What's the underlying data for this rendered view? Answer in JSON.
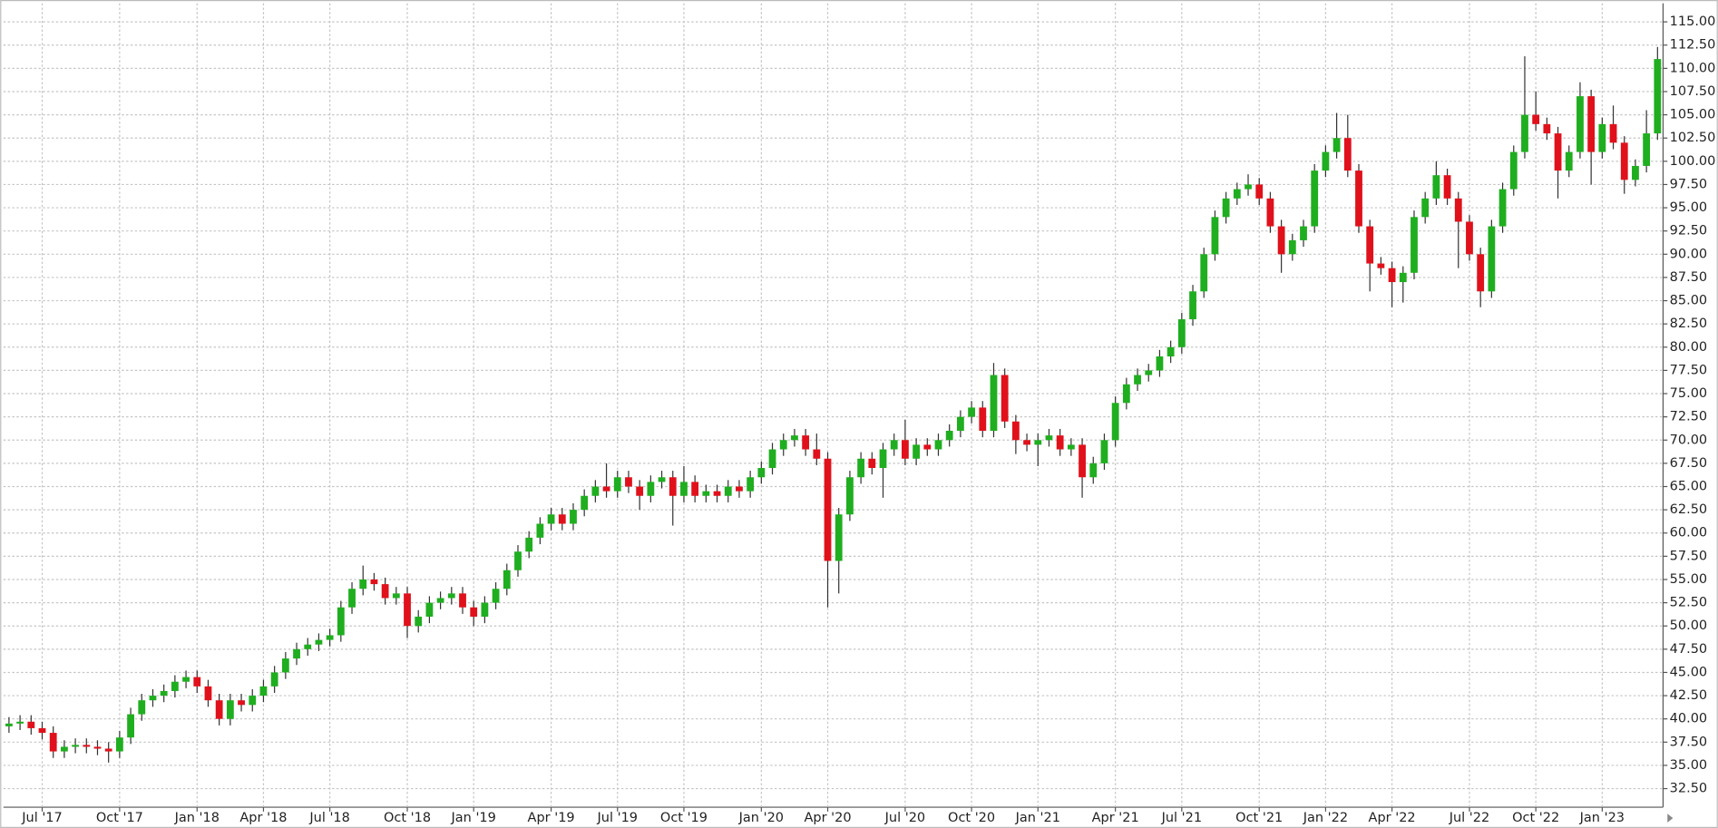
{
  "chart_data": {
    "type": "candlestick",
    "up_color": "#1fae1f",
    "down_color": "#e0111b",
    "grid": true,
    "ylim": [
      30.5,
      117
    ],
    "yticks": [
      {
        "value": 32.5,
        "label": "32.50"
      },
      {
        "value": 35,
        "label": "35.00"
      },
      {
        "value": 37.5,
        "label": "37.50"
      },
      {
        "value": 40,
        "label": "40.00"
      },
      {
        "value": 42.5,
        "label": "42.50"
      },
      {
        "value": 45,
        "label": "45.00"
      },
      {
        "value": 47.5,
        "label": "47.50"
      },
      {
        "value": 50,
        "label": "50.00"
      },
      {
        "value": 52.5,
        "label": "52.50"
      },
      {
        "value": 55,
        "label": "55.00"
      },
      {
        "value": 57.5,
        "label": "57.50"
      },
      {
        "value": 60,
        "label": "60.00"
      },
      {
        "value": 62.5,
        "label": "62.50"
      },
      {
        "value": 65,
        "label": "65.00"
      },
      {
        "value": 67.5,
        "label": "67.50"
      },
      {
        "value": 70,
        "label": "70.00"
      },
      {
        "value": 72.5,
        "label": "72.50"
      },
      {
        "value": 75,
        "label": "75.00"
      },
      {
        "value": 77.5,
        "label": "77.50"
      },
      {
        "value": 80,
        "label": "80.00"
      },
      {
        "value": 82.5,
        "label": "82.50"
      },
      {
        "value": 85,
        "label": "85.00"
      },
      {
        "value": 87.5,
        "label": "87.50"
      },
      {
        "value": 90,
        "label": "90.00"
      },
      {
        "value": 92.5,
        "label": "92.50"
      },
      {
        "value": 95,
        "label": "95.00"
      },
      {
        "value": 97.5,
        "label": "97.50"
      },
      {
        "value": 100,
        "label": "100.00"
      },
      {
        "value": 102.5,
        "label": "102.50"
      },
      {
        "value": 105,
        "label": "105.00"
      },
      {
        "value": 107.5,
        "label": "107.50"
      },
      {
        "value": 110,
        "label": "110.00"
      },
      {
        "value": 112.5,
        "label": "112.50"
      },
      {
        "value": 115,
        "label": "115.00"
      }
    ],
    "categories": [
      null,
      null,
      null,
      "Jul '17",
      null,
      null,
      null,
      null,
      null,
      null,
      "Oct '17",
      null,
      null,
      null,
      null,
      null,
      null,
      "Jan '18",
      null,
      null,
      null,
      null,
      null,
      "Apr '18",
      null,
      null,
      null,
      null,
      null,
      "Jul '18",
      null,
      null,
      null,
      null,
      null,
      null,
      "Oct '18",
      null,
      null,
      null,
      null,
      null,
      "Jan '19",
      null,
      null,
      null,
      null,
      null,
      null,
      "Apr '19",
      null,
      null,
      null,
      null,
      null,
      "Jul '19",
      null,
      null,
      null,
      null,
      null,
      "Oct '19",
      null,
      null,
      null,
      null,
      null,
      null,
      "Jan '20",
      null,
      null,
      null,
      null,
      null,
      "Apr '20",
      null,
      null,
      null,
      null,
      null,
      null,
      "Jul '20",
      null,
      null,
      null,
      null,
      null,
      "Oct '20",
      null,
      null,
      null,
      null,
      null,
      "Jan '21",
      null,
      null,
      null,
      null,
      null,
      null,
      "Apr '21",
      null,
      null,
      null,
      null,
      null,
      "Jul '21",
      null,
      null,
      null,
      null,
      null,
      null,
      "Oct '21",
      null,
      null,
      null,
      null,
      null,
      "Jan '22",
      null,
      null,
      null,
      null,
      null,
      "Apr '22",
      null,
      null,
      null,
      null,
      null,
      null,
      "Jul '22",
      null,
      null,
      null,
      null,
      null,
      "Oct '22",
      null,
      null,
      null,
      null,
      null,
      "Jan '23",
      null,
      null,
      null,
      null,
      null
    ],
    "open": [
      39.2,
      39.5,
      39.7,
      39,
      38.5,
      36.5,
      37,
      37.2,
      37,
      36.8,
      36.5,
      38,
      40.5,
      42,
      42.5,
      43,
      44,
      44.5,
      43.5,
      42,
      40,
      42,
      41.5,
      42.5,
      43.5,
      45,
      46.5,
      47.5,
      48,
      48.5,
      49,
      52,
      54,
      55,
      54.5,
      53,
      53.5,
      50,
      51,
      52.5,
      53,
      53.5,
      52,
      51,
      52.5,
      54,
      56,
      58,
      59.5,
      61,
      62,
      61,
      62.5,
      64,
      65,
      64.5,
      66,
      65,
      64,
      65.5,
      66,
      64,
      65.5,
      64,
      64.5,
      64,
      65,
      64.5,
      66,
      67,
      69,
      70,
      70.5,
      69,
      68,
      57,
      62,
      66,
      68,
      67,
      69,
      70,
      68,
      69.5,
      69,
      70,
      71,
      72.5,
      73.5,
      71,
      77,
      72,
      70,
      69.5,
      70,
      70.5,
      69,
      69.5,
      66,
      67.5,
      70,
      74,
      76,
      77,
      77.5,
      79,
      80,
      83,
      86,
      90,
      94,
      96,
      97,
      97.5,
      96,
      93,
      90,
      91.5,
      93,
      99,
      101,
      102.5,
      99,
      93,
      89,
      88.5,
      87,
      88,
      94,
      96,
      98.5,
      96,
      93.5,
      90,
      86,
      93,
      97,
      101,
      105,
      104,
      103,
      99,
      101,
      107,
      101,
      104,
      102,
      98,
      99.5,
      103
    ],
    "high": [
      40.2,
      40.4,
      40.4,
      39.7,
      39.2,
      37.7,
      37.9,
      37.9,
      37.7,
      37.5,
      38.7,
      41.2,
      42.7,
      43.2,
      43.7,
      44.7,
      45.2,
      45.2,
      44.2,
      42.7,
      42.7,
      42.7,
      43.2,
      44.2,
      45.7,
      47.2,
      48.2,
      48.7,
      49.2,
      49.7,
      52.7,
      54.7,
      56.5,
      55.7,
      55.2,
      54.2,
      54.2,
      51.7,
      53.2,
      53.7,
      54.2,
      54.2,
      52.7,
      53.2,
      54.7,
      56.7,
      58.7,
      60.2,
      61.7,
      62.7,
      62.7,
      63.2,
      64.7,
      65.7,
      67.5,
      66.7,
      66.7,
      65.7,
      66.2,
      66.7,
      66.7,
      67.2,
      66.2,
      65.2,
      65.2,
      65.7,
      65.7,
      66.7,
      67.7,
      69.7,
      70.7,
      71.2,
      71.2,
      70.7,
      68.7,
      62.7,
      66.7,
      68.7,
      68.7,
      69.7,
      70.7,
      72.2,
      70.2,
      70.2,
      70.7,
      71.7,
      73.2,
      74.2,
      74.2,
      78.3,
      77.7,
      72.7,
      70.7,
      70.7,
      71.2,
      71.2,
      70.2,
      70.2,
      68.2,
      70.7,
      74.7,
      76.7,
      77.7,
      78.2,
      79.7,
      80.7,
      83.7,
      86.7,
      90.7,
      94.7,
      96.7,
      97.7,
      98.6,
      98.2,
      96.7,
      93.7,
      92.2,
      93.7,
      99.7,
      101.7,
      105.2,
      105,
      99.7,
      93.7,
      89.7,
      89.2,
      88.7,
      94.7,
      96.7,
      100,
      99.2,
      96.7,
      94.2,
      90.7,
      93.7,
      97.7,
      101.7,
      111.3,
      107.5,
      104.7,
      103.7,
      101.7,
      108.5,
      107.7,
      104.7,
      106,
      102.7,
      100.2,
      105.5,
      112.3
    ],
    "low": [
      38.5,
      38.8,
      38.3,
      37.8,
      35.8,
      35.8,
      36.3,
      36.3,
      36.1,
      35.3,
      35.8,
      37.3,
      39.8,
      41.3,
      41.8,
      42.3,
      43.3,
      42.8,
      41.3,
      39.3,
      39.3,
      40.8,
      40.8,
      41.8,
      42.8,
      44.3,
      45.8,
      46.8,
      47.3,
      47.8,
      48.3,
      51.3,
      53.3,
      53.8,
      52.3,
      52.3,
      48.7,
      49.3,
      50.3,
      51.8,
      52.3,
      51.3,
      50,
      50.3,
      51.8,
      53.3,
      55.3,
      57.3,
      58.8,
      60.3,
      60.3,
      60.3,
      61.8,
      63.3,
      63.8,
      63.8,
      64.3,
      62.5,
      63.3,
      64.8,
      60.8,
      63.3,
      63.3,
      63.3,
      63.3,
      63.3,
      63.8,
      63.8,
      65.3,
      66.3,
      68.3,
      69.3,
      68.3,
      67.3,
      52,
      53.5,
      61.3,
      65.3,
      66.3,
      63.8,
      68.3,
      67.3,
      67.3,
      68.3,
      68.3,
      69.3,
      70.3,
      71.8,
      70.3,
      70.3,
      71.3,
      68.5,
      68.8,
      67.2,
      69.3,
      68.3,
      68.3,
      63.8,
      65.3,
      66.8,
      69.3,
      73.3,
      75.3,
      76.3,
      76.8,
      78.3,
      79.3,
      82.3,
      85.3,
      89.3,
      93.3,
      95.3,
      96.3,
      95.3,
      92.3,
      88,
      89.3,
      90.8,
      92.3,
      98.3,
      100.3,
      98.3,
      92.3,
      86,
      87.8,
      84.3,
      84.8,
      87.3,
      93.3,
      95.3,
      95.3,
      88.5,
      89.3,
      84.3,
      85.3,
      92.3,
      96.3,
      100.3,
      103.3,
      102.3,
      96,
      98.3,
      100.3,
      97.5,
      100.3,
      101.3,
      96.5,
      97.3,
      98.8,
      102.3
    ],
    "close": [
      39.5,
      39.7,
      39,
      38.5,
      36.5,
      37,
      37.2,
      37,
      36.8,
      36.5,
      38,
      40.5,
      42,
      42.5,
      43,
      44,
      44.5,
      43.5,
      42,
      40,
      42,
      41.5,
      42.5,
      43.5,
      45,
      46.5,
      47.5,
      48,
      48.5,
      49,
      52,
      54,
      55,
      54.5,
      53,
      53.5,
      50,
      51,
      52.5,
      53,
      53.5,
      52,
      51,
      52.5,
      54,
      56,
      58,
      59.5,
      61,
      62,
      61,
      62.5,
      64,
      65,
      64.5,
      66,
      65,
      64,
      65.5,
      66,
      64,
      65.5,
      64,
      64.5,
      64,
      65,
      64.5,
      66,
      67,
      69,
      70,
      70.5,
      69,
      68,
      57,
      62,
      66,
      68,
      67,
      69,
      70,
      68,
      69.5,
      69,
      70,
      71,
      72.5,
      73.5,
      71,
      77,
      72,
      70,
      69.5,
      70,
      70.5,
      69,
      69.5,
      66,
      67.5,
      70,
      74,
      76,
      77,
      77.5,
      79,
      80,
      83,
      86,
      90,
      94,
      96,
      97,
      97.5,
      96,
      93,
      90,
      91.5,
      93,
      99,
      101,
      102.5,
      99,
      93,
      89,
      88.5,
      87,
      88,
      94,
      96,
      98.5,
      96,
      93.5,
      90,
      86,
      93,
      97,
      101,
      105,
      104,
      103,
      99,
      101,
      107,
      101,
      104,
      102,
      98,
      99.5,
      103,
      111
    ]
  }
}
